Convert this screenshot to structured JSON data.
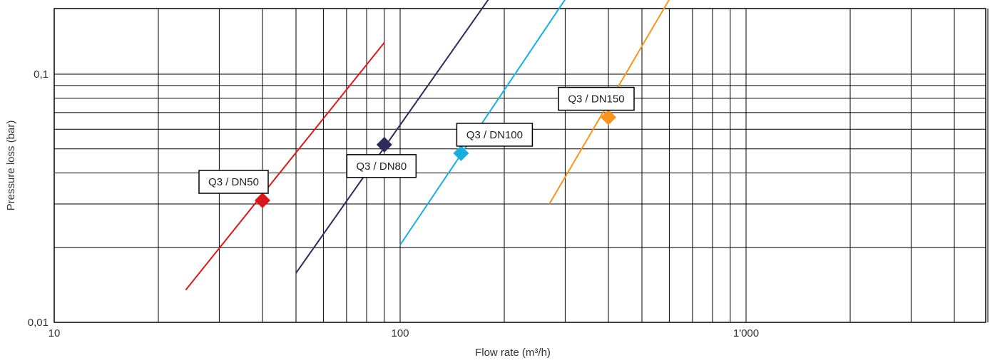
{
  "chart_data": {
    "type": "line",
    "title": "",
    "xlabel": "Flow rate (m³/h)",
    "ylabel": "Pressure loss (bar)",
    "x_scale": "log",
    "y_scale": "log",
    "xlim": [
      10,
      5000
    ],
    "ylim": [
      0.01,
      0.2
    ],
    "grid": true,
    "x_tick_labels": [
      {
        "value": 10,
        "label": "10"
      },
      {
        "value": 100,
        "label": "100"
      },
      {
        "value": 1000,
        "label": "1'000"
      }
    ],
    "y_tick_labels": [
      {
        "value": 0.01,
        "label": "0,01"
      },
      {
        "value": 0.1,
        "label": "0,1"
      }
    ],
    "series": [
      {
        "color": "#d7191c",
        "x": [
          24,
          90
        ],
        "y": [
          0.0135,
          0.134
        ],
        "marker": {
          "x": 40,
          "y": 0.031,
          "label": "Q3 / DN50"
        }
      },
      {
        "color": "#2e2a5e",
        "x": [
          50,
          180
        ],
        "y": [
          0.0158,
          0.2
        ],
        "marker": {
          "x": 90,
          "y": 0.052,
          "label": "Q3 / DN80"
        }
      },
      {
        "color": "#1aaee0",
        "x": [
          100,
          300
        ],
        "y": [
          0.0205,
          0.2
        ],
        "marker": {
          "x": 150,
          "y": 0.048,
          "label": "Q3 / DN100"
        }
      },
      {
        "color": "#f7941d",
        "x": [
          270,
          600
        ],
        "y": [
          0.03,
          0.2
        ],
        "marker": {
          "x": 400,
          "y": 0.067,
          "label": "Q3 / DN150"
        }
      }
    ]
  }
}
